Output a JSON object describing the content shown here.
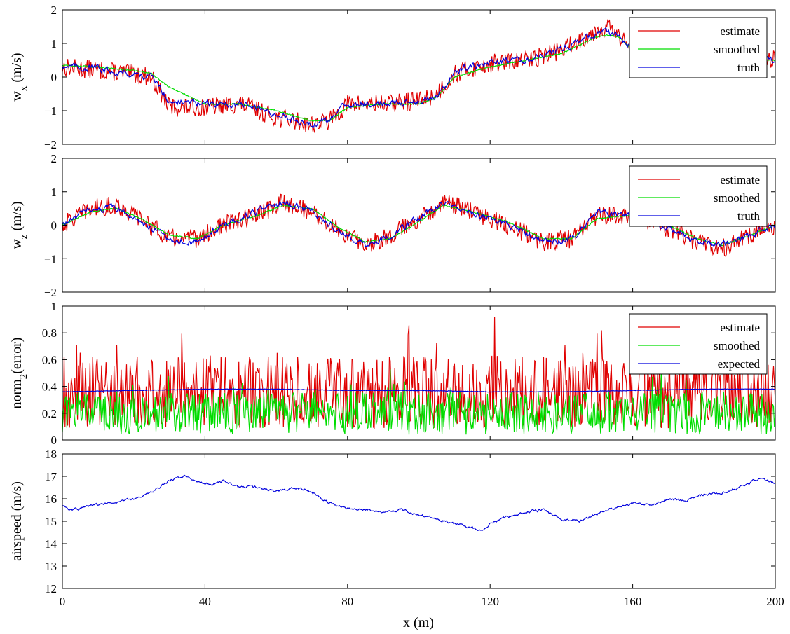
{
  "figure": {
    "xlabel": "x (m)",
    "xticks": [
      0,
      40,
      80,
      120,
      160,
      200
    ]
  },
  "chart_data": [
    {
      "type": "line",
      "ylabel_main": "w",
      "ylabel_sub": "x",
      "ylabel_tail": " (m/s)",
      "xlabel": "",
      "xlim": [
        0,
        200
      ],
      "ylim": [
        -2,
        2
      ],
      "yticks": [
        "-2",
        "-1",
        "0",
        "1",
        "2"
      ],
      "legend_position": "top-right",
      "legend": [
        "estimate",
        "smoothed",
        "truth"
      ],
      "series": [
        {
          "name": "estimate",
          "color": "#e00000",
          "style": "noisy",
          "x": [
            0,
            10,
            20,
            25,
            30,
            40,
            50,
            60,
            70,
            75,
            80,
            90,
            100,
            105,
            110,
            120,
            130,
            140,
            150,
            153,
            156,
            160,
            170,
            180,
            190,
            200
          ],
          "y": [
            0.3,
            0.2,
            0.1,
            0.0,
            -0.9,
            -0.9,
            -0.8,
            -1.2,
            -1.4,
            -1.3,
            -0.8,
            -0.8,
            -0.7,
            -0.5,
            0.1,
            0.4,
            0.5,
            0.8,
            1.4,
            1.5,
            1.2,
            0.8,
            0.6,
            0.5,
            0.6,
            0.5
          ]
        },
        {
          "name": "smoothed",
          "color": "#00dd00",
          "style": "smooth",
          "x": [
            0,
            10,
            20,
            25,
            30,
            40,
            50,
            60,
            70,
            75,
            80,
            90,
            100,
            105,
            110,
            120,
            130,
            140,
            150,
            153,
            156,
            160,
            170,
            180,
            190,
            200
          ],
          "y": [
            0.35,
            0.3,
            0.2,
            0.1,
            -0.3,
            -0.8,
            -0.8,
            -1.0,
            -1.3,
            -1.3,
            -0.9,
            -0.8,
            -0.8,
            -0.6,
            0.0,
            0.3,
            0.5,
            0.7,
            1.2,
            1.25,
            1.2,
            0.8,
            0.6,
            0.5,
            0.6,
            0.5
          ]
        },
        {
          "name": "truth",
          "color": "#0000dd",
          "style": "medium",
          "x": [
            0,
            10,
            20,
            25,
            30,
            40,
            50,
            60,
            70,
            75,
            80,
            90,
            100,
            105,
            110,
            120,
            130,
            140,
            150,
            153,
            156,
            160,
            170,
            180,
            190,
            200
          ],
          "y": [
            0.35,
            0.25,
            0.1,
            0.0,
            -0.7,
            -0.8,
            -0.8,
            -1.1,
            -1.4,
            -1.3,
            -0.8,
            -0.8,
            -0.7,
            -0.6,
            0.2,
            0.4,
            0.5,
            0.8,
            1.3,
            1.35,
            1.2,
            0.8,
            0.6,
            0.5,
            0.6,
            0.5
          ]
        }
      ]
    },
    {
      "type": "line",
      "ylabel_main": "w",
      "ylabel_sub": "z",
      "ylabel_tail": " (m/s)",
      "xlabel": "",
      "xlim": [
        0,
        200
      ],
      "ylim": [
        -2,
        2
      ],
      "yticks": [
        "-2",
        "-1",
        "0",
        "1",
        "2"
      ],
      "legend_position": "top-right",
      "legend": [
        "estimate",
        "smoothed",
        "truth"
      ],
      "series": [
        {
          "name": "estimate",
          "color": "#e00000",
          "style": "noisy",
          "x": [
            0,
            8,
            15,
            22,
            30,
            38,
            45,
            55,
            62,
            70,
            78,
            85,
            92,
            100,
            107,
            115,
            125,
            135,
            143,
            150,
            160,
            170,
            178,
            185,
            193,
            200
          ],
          "y": [
            0.0,
            0.5,
            0.6,
            0.2,
            -0.4,
            -0.4,
            0.0,
            0.3,
            0.7,
            0.4,
            -0.2,
            -0.6,
            -0.3,
            0.2,
            0.7,
            0.4,
            0.0,
            -0.5,
            -0.4,
            0.3,
            0.3,
            -0.1,
            -0.5,
            -0.7,
            -0.3,
            0.0
          ]
        },
        {
          "name": "smoothed",
          "color": "#00dd00",
          "style": "smooth",
          "x": [
            0,
            8,
            15,
            22,
            30,
            38,
            45,
            55,
            62,
            70,
            78,
            85,
            92,
            100,
            107,
            115,
            125,
            135,
            143,
            150,
            160,
            170,
            178,
            185,
            193,
            200
          ],
          "y": [
            0.0,
            0.4,
            0.5,
            0.2,
            -0.3,
            -0.4,
            0.0,
            0.3,
            0.6,
            0.5,
            -0.1,
            -0.5,
            -0.4,
            0.1,
            0.6,
            0.4,
            0.1,
            -0.4,
            -0.4,
            0.2,
            0.3,
            0.0,
            -0.4,
            -0.6,
            -0.3,
            0.0
          ]
        },
        {
          "name": "truth",
          "color": "#0000dd",
          "style": "medium",
          "x": [
            0,
            8,
            15,
            22,
            30,
            38,
            45,
            55,
            62,
            70,
            78,
            85,
            92,
            100,
            107,
            115,
            125,
            135,
            143,
            150,
            160,
            170,
            178,
            185,
            193,
            200
          ],
          "y": [
            0.0,
            0.5,
            0.5,
            0.1,
            -0.4,
            -0.5,
            0.0,
            0.4,
            0.7,
            0.4,
            -0.2,
            -0.6,
            -0.3,
            0.2,
            0.7,
            0.4,
            0.0,
            -0.5,
            -0.4,
            0.4,
            0.3,
            -0.1,
            -0.5,
            -0.6,
            -0.3,
            0.0
          ]
        }
      ]
    },
    {
      "type": "line",
      "ylabel_main": "norm",
      "ylabel_sub": "2",
      "ylabel_tail": "(error)",
      "xlabel": "",
      "xlim": [
        0,
        200
      ],
      "ylim": [
        0,
        1
      ],
      "yticks": [
        "0",
        "0.2",
        "0.4",
        "0.6",
        "0.8",
        "1"
      ],
      "legend_position": "top-right",
      "legend": [
        "estimate",
        "smoothed",
        "expected"
      ],
      "series": [
        {
          "name": "estimate",
          "color": "#e00000",
          "style": "spiky",
          "base": 0.36,
          "amp": 0.34
        },
        {
          "name": "smoothed",
          "color": "#00dd00",
          "style": "spiky",
          "base": 0.2,
          "amp": 0.2
        },
        {
          "name": "expected",
          "color": "#0000dd",
          "style": "flat",
          "x": [
            0,
            20,
            40,
            60,
            80,
            100,
            120,
            140,
            160,
            180,
            200
          ],
          "y": [
            0.36,
            0.37,
            0.38,
            0.38,
            0.37,
            0.37,
            0.36,
            0.36,
            0.37,
            0.38,
            0.38
          ]
        }
      ]
    },
    {
      "type": "line",
      "ylabel_main": "airspeed (m/s)",
      "ylabel_sub": "",
      "ylabel_tail": "",
      "xlabel": "x (m)",
      "xlim": [
        0,
        200
      ],
      "ylim": [
        12,
        18
      ],
      "yticks": [
        "12",
        "13",
        "14",
        "15",
        "16",
        "17",
        "18"
      ],
      "legend_position": "none",
      "legend": [],
      "series": [
        {
          "name": "airspeed",
          "color": "#0000dd",
          "style": "light",
          "x": [
            0,
            3,
            8,
            14,
            20,
            25,
            30,
            34,
            38,
            42,
            45,
            50,
            55,
            60,
            65,
            70,
            75,
            80,
            85,
            90,
            95,
            100,
            105,
            110,
            115,
            118,
            120,
            125,
            130,
            135,
            140,
            145,
            150,
            155,
            160,
            165,
            170,
            175,
            180,
            185,
            190,
            195,
            198,
            200
          ],
          "y": [
            15.7,
            15.5,
            15.7,
            15.8,
            16.0,
            16.3,
            16.8,
            17.0,
            16.8,
            16.6,
            16.8,
            16.5,
            16.5,
            16.3,
            16.5,
            16.3,
            15.8,
            15.6,
            15.5,
            15.4,
            15.5,
            15.3,
            15.1,
            14.9,
            14.7,
            14.6,
            14.9,
            15.2,
            15.4,
            15.5,
            15.1,
            15.0,
            15.3,
            15.6,
            15.8,
            15.7,
            16.0,
            15.9,
            16.2,
            16.3,
            16.5,
            16.9,
            16.8,
            16.7
          ]
        }
      ]
    }
  ]
}
